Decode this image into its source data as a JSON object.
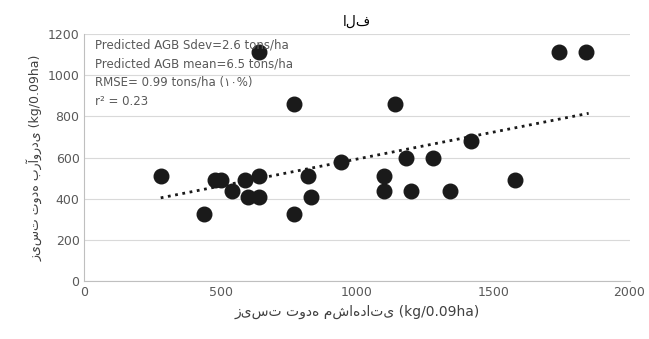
{
  "chart_data": {
    "type": "scatter",
    "title": "الف",
    "x_label": "زیست توده مشاهداتی (kg/0.09ha)",
    "y_label": "زیست توده برآوردی (kg/0.09ha)",
    "annotations": [
      "Predicted AGB Sdev=2.6 tons/ha",
      "Predicted AGB mean=6.5 tons/ha",
      "RMSE= 0.99 tons/ha (۱۰%)",
      "r² = 0.23"
    ],
    "series": [
      {
        "type": "scatter",
        "color": "#1a1a1a",
        "marker": "circle",
        "x": [
          280,
          440,
          480,
          500,
          540,
          590,
          600,
          640,
          640,
          640,
          770,
          770,
          820,
          830,
          940,
          1100,
          1100,
          1140,
          1180,
          1200,
          1280,
          1340,
          1420,
          1580,
          1740,
          1840
        ],
        "values": [
          510,
          325,
          490,
          490,
          440,
          490,
          410,
          510,
          410,
          1110,
          860,
          325,
          510,
          410,
          580,
          510,
          440,
          860,
          600,
          440,
          600,
          440,
          680,
          490,
          1110,
          1110
        ]
      },
      {
        "type": "line",
        "color": "#1a1a1a",
        "line_style": "dotted",
        "x": [
          280,
          1850
        ],
        "values": [
          405,
          815
        ]
      }
    ],
    "xlim": [
      0,
      2000
    ],
    "xticks": [
      0,
      500,
      1000,
      1500,
      2000
    ],
    "ylim": [
      0,
      1200
    ],
    "yticks": [
      0,
      200,
      400,
      600,
      800,
      1000,
      1200
    ],
    "grid": "y"
  }
}
